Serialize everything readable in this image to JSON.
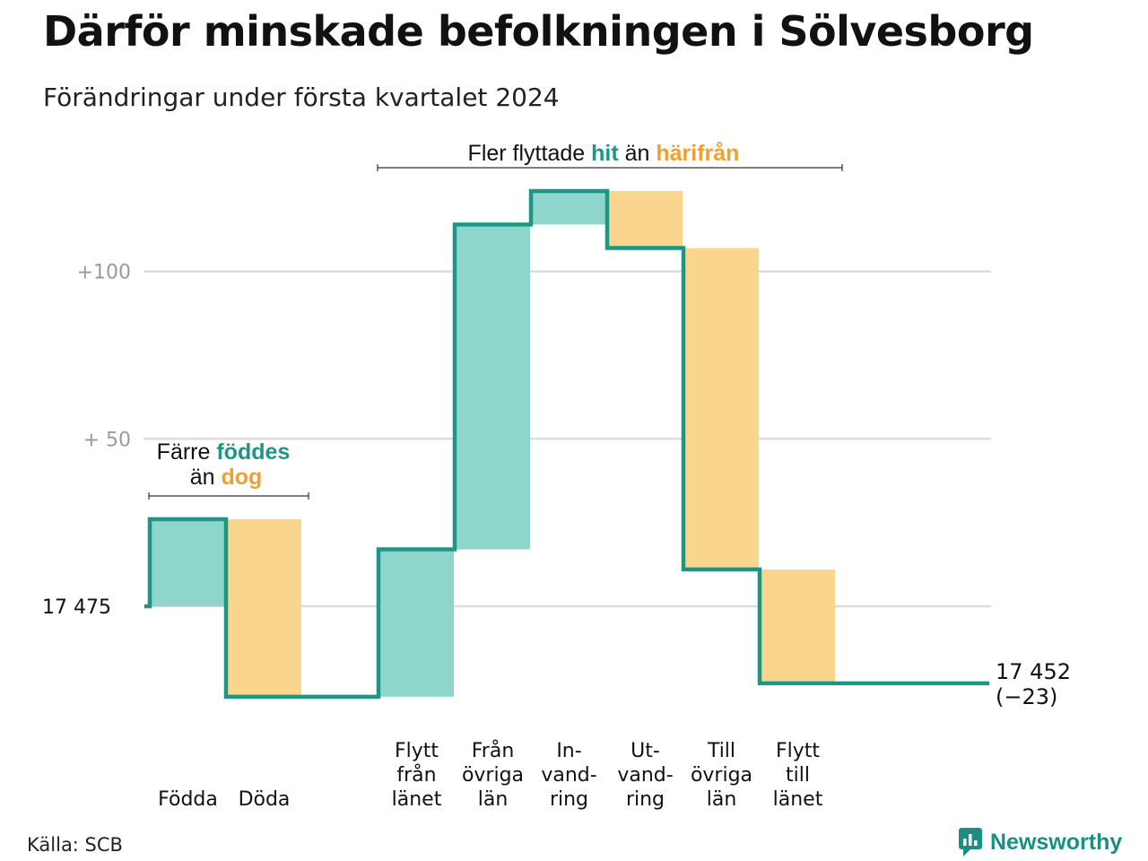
{
  "title": "Därför minskade befolkningen i Sölvesborg",
  "subtitle": "Förändringar under första kvartalet 2024",
  "source": "Källa: SCB",
  "brand": "Newsworthy",
  "colors": {
    "inflow_fill": "#8ed5cc",
    "outflow_fill": "#f9d58e",
    "line": "#1e9685",
    "inflow_text": "#1e9685",
    "outflow_text": "#f0a030",
    "grid": "#dddddd"
  },
  "annotations": {
    "births_deaths": {
      "line1_prefix": "Färre ",
      "line1_highlight": "föddes",
      "line2_prefix": "än ",
      "line2_highlight": "dog"
    },
    "moves": {
      "prefix": "Fler flyttade ",
      "highlight_in": "hit",
      "middle": " än ",
      "highlight_out": "härifrån"
    }
  },
  "chart_data": {
    "type": "waterfall",
    "start_value": 17475,
    "start_label": "17  475",
    "end_value": 17452,
    "end_label_line1": "17 452",
    "end_label_line2": "(−23)",
    "y_ticks": [
      {
        "value": 100,
        "label": "+100"
      },
      {
        "value": 50,
        "label": "+  50"
      },
      {
        "value": 0,
        "label": "17  475"
      }
    ],
    "steps": [
      {
        "label_lines": [
          "Födda"
        ],
        "delta": 26,
        "kind": "in"
      },
      {
        "label_lines": [
          "Döda"
        ],
        "delta": -53,
        "kind": "out"
      },
      {
        "label_lines": [],
        "delta": 0,
        "kind": "gap"
      },
      {
        "label_lines": [
          "Flytt",
          "från",
          "länet"
        ],
        "delta": 44,
        "kind": "in"
      },
      {
        "label_lines": [
          "Från",
          "övriga",
          "län"
        ],
        "delta": 97,
        "kind": "in"
      },
      {
        "label_lines": [
          "In-",
          "vand-",
          "ring"
        ],
        "delta": 10,
        "kind": "in"
      },
      {
        "label_lines": [
          "Ut-",
          "vand-",
          "ring"
        ],
        "delta": -17,
        "kind": "out"
      },
      {
        "label_lines": [
          "Till",
          "övriga",
          "län"
        ],
        "delta": -96,
        "kind": "out"
      },
      {
        "label_lines": [
          "Flytt",
          "till",
          "länet"
        ],
        "delta": -34,
        "kind": "out"
      }
    ]
  }
}
